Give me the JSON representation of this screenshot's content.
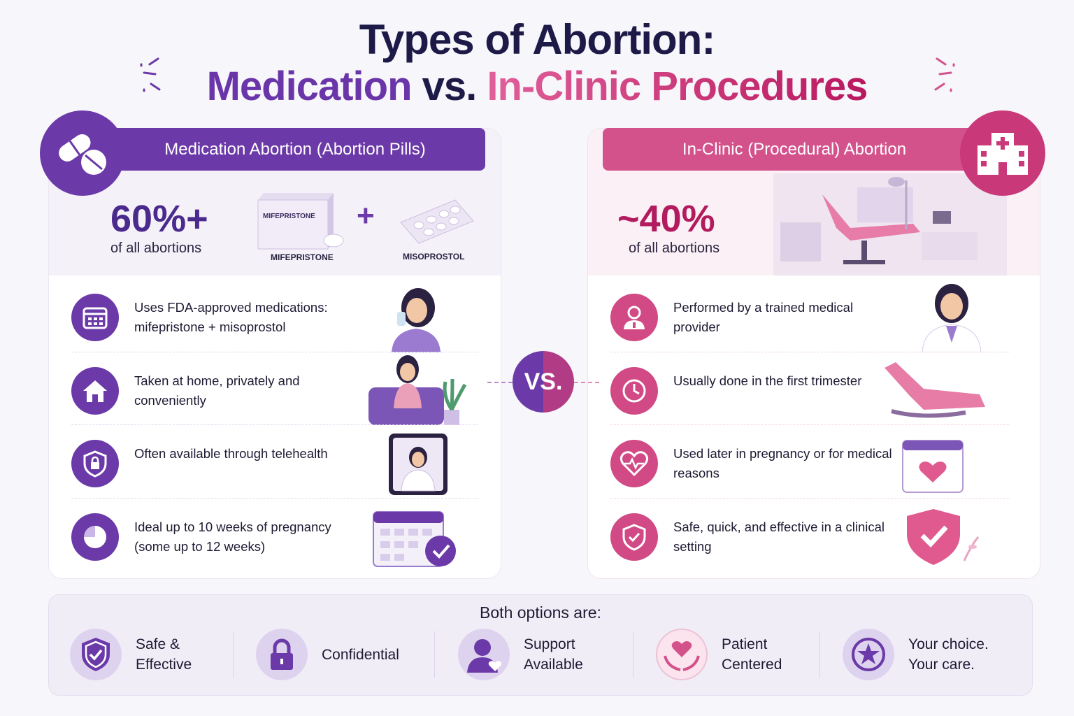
{
  "title": {
    "line1": "Types of Abortion:",
    "medication": "Medication",
    "vs_word": " vs. ",
    "inclinic": "In-Clinic Procedures"
  },
  "left": {
    "header": "Medication Abortion (Abortion Pills)",
    "stat": "60%+",
    "stat_label": "of all abortions",
    "drug1_box": "MIFEPRISTONE",
    "drug1": "MIFEPRISTONE",
    "plus": "+",
    "drug2": "MISOPROSTOL",
    "items": [
      {
        "icon": "calendar-icon",
        "text": "Uses FDA-approved medications: mifepristone + misoprostol"
      },
      {
        "icon": "home-icon",
        "text": "Taken at home, privately and conveniently"
      },
      {
        "icon": "shield-lock-icon",
        "text": "Often available through telehealth"
      },
      {
        "icon": "pie-chart-icon",
        "text": "Ideal up to 10 weeks of pregnancy (some up to 12 weeks)"
      }
    ]
  },
  "vs": "VS.",
  "right": {
    "header": "In-Clinic (Procedural) Abortion",
    "stat": "~40%",
    "stat_label": "of all abortions",
    "items": [
      {
        "icon": "provider-icon",
        "text": "Performed by a trained medical provider"
      },
      {
        "icon": "clock-icon",
        "text": "Usually done in the first trimester"
      },
      {
        "icon": "heart-pulse-icon",
        "text": "Used later in pregnancy or for medical reasons"
      },
      {
        "icon": "shield-check-icon",
        "text": "Safe, quick, and effective in a clinical setting"
      }
    ]
  },
  "bottom": {
    "heading": "Both options are:",
    "items": [
      {
        "icon": "shield-check-icon",
        "label1": "Safe &",
        "label2": "Effective"
      },
      {
        "icon": "lock-icon",
        "label1": "Confidential",
        "label2": ""
      },
      {
        "icon": "person-heart-icon",
        "label1": "Support",
        "label2": "Available"
      },
      {
        "icon": "hands-heart-icon",
        "label1": "Patient",
        "label2": "Centered"
      },
      {
        "icon": "star-badge-icon",
        "label1": "Your choice.",
        "label2": "Your care."
      }
    ]
  },
  "colors": {
    "purple": "#6b3aa8",
    "pink": "#d4528c",
    "navy": "#1d1a48"
  }
}
